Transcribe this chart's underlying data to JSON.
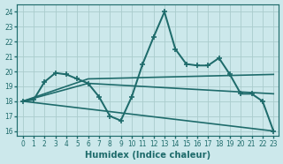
{
  "xlabel": "Humidex (Indice chaleur)",
  "background_color": "#cce8eb",
  "grid_color": "#aacccc",
  "line_color": "#1e6b6b",
  "xlim": [
    -0.5,
    23.5
  ],
  "ylim": [
    15.7,
    24.5
  ],
  "yticks": [
    16,
    17,
    18,
    19,
    20,
    21,
    22,
    23,
    24
  ],
  "xticks": [
    0,
    1,
    2,
    3,
    4,
    5,
    6,
    7,
    8,
    9,
    10,
    11,
    12,
    13,
    14,
    15,
    16,
    17,
    18,
    19,
    20,
    21,
    22,
    23
  ],
  "series": [
    {
      "x": [
        0,
        1,
        2,
        3,
        4,
        5,
        6,
        7,
        8,
        9,
        10,
        11,
        12,
        13,
        14,
        15,
        16,
        17,
        18,
        19,
        20,
        21,
        22,
        23
      ],
      "y": [
        18.0,
        18.1,
        19.3,
        19.9,
        19.8,
        19.5,
        19.2,
        18.3,
        17.0,
        16.7,
        18.3,
        20.5,
        22.3,
        24.0,
        21.5,
        20.5,
        20.4,
        20.4,
        20.9,
        19.8,
        18.5,
        18.5,
        18.0,
        16.0
      ],
      "marker": "+",
      "markersize": 4,
      "linewidth": 1.2
    },
    {
      "x": [
        0,
        6,
        23
      ],
      "y": [
        18.0,
        19.5,
        19.8
      ],
      "marker": null,
      "markersize": 0,
      "linewidth": 1.0
    },
    {
      "x": [
        0,
        6,
        23
      ],
      "y": [
        18.0,
        19.2,
        18.5
      ],
      "marker": null,
      "markersize": 0,
      "linewidth": 1.0
    },
    {
      "x": [
        0,
        23
      ],
      "y": [
        18.0,
        16.0
      ],
      "marker": null,
      "markersize": 0,
      "linewidth": 1.0
    }
  ]
}
